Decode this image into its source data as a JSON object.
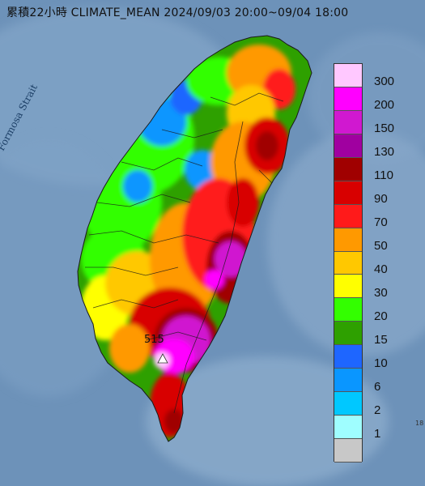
{
  "title": "累積22小時 CLIMATE_MEAN 2024/09/03 20:00~09/04 18:00",
  "strait_label": "Formosa Strait",
  "peak_value": "515",
  "corner_text": "18",
  "legend": {
    "items": [
      {
        "label": "300",
        "color": "#ffc8ff"
      },
      {
        "label": "200",
        "color": "#ff00ff"
      },
      {
        "label": "150",
        "color": "#d018d0"
      },
      {
        "label": "130",
        "color": "#a000a0"
      },
      {
        "label": "110",
        "color": "#a00000"
      },
      {
        "label": "90",
        "color": "#d80000"
      },
      {
        "label": "70",
        "color": "#ff1a1a"
      },
      {
        "label": "50",
        "color": "#ff9900"
      },
      {
        "label": "40",
        "color": "#ffc800"
      },
      {
        "label": "30",
        "color": "#ffff00"
      },
      {
        "label": "20",
        "color": "#33ff00"
      },
      {
        "label": "15",
        "color": "#2ea000"
      },
      {
        "label": "10",
        "color": "#1e66ff"
      },
      {
        "label": "6",
        "color": "#0a96ff"
      },
      {
        "label": "2",
        "color": "#00c8ff"
      },
      {
        "label": "1",
        "color": "#9ffeff"
      },
      {
        "label": "",
        "color": "#c8c8c8"
      }
    ]
  }
}
